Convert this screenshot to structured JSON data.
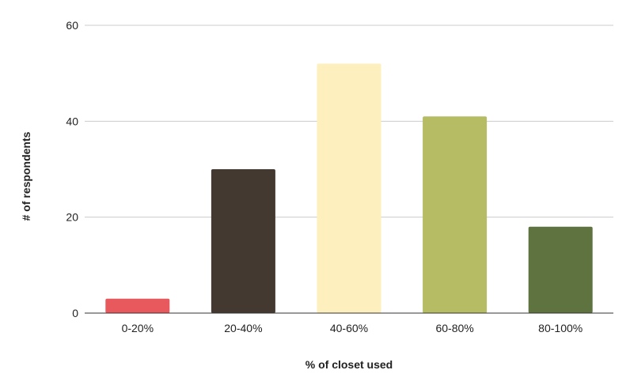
{
  "chart_data": {
    "type": "bar",
    "categories": [
      "0-20%",
      "20-40%",
      "40-60%",
      "60-80%",
      "80-100%"
    ],
    "values": [
      3,
      30,
      52,
      41,
      18
    ],
    "bar_colors": [
      "#e8595d",
      "#433930",
      "#fdefbe",
      "#b5bc63",
      "#5e7340"
    ],
    "xlabel": "% of closet used",
    "ylabel": "# of respondents",
    "ylim": [
      0,
      60
    ],
    "yticks": [
      0,
      20,
      40,
      60
    ],
    "grid": true,
    "legend": "none"
  }
}
